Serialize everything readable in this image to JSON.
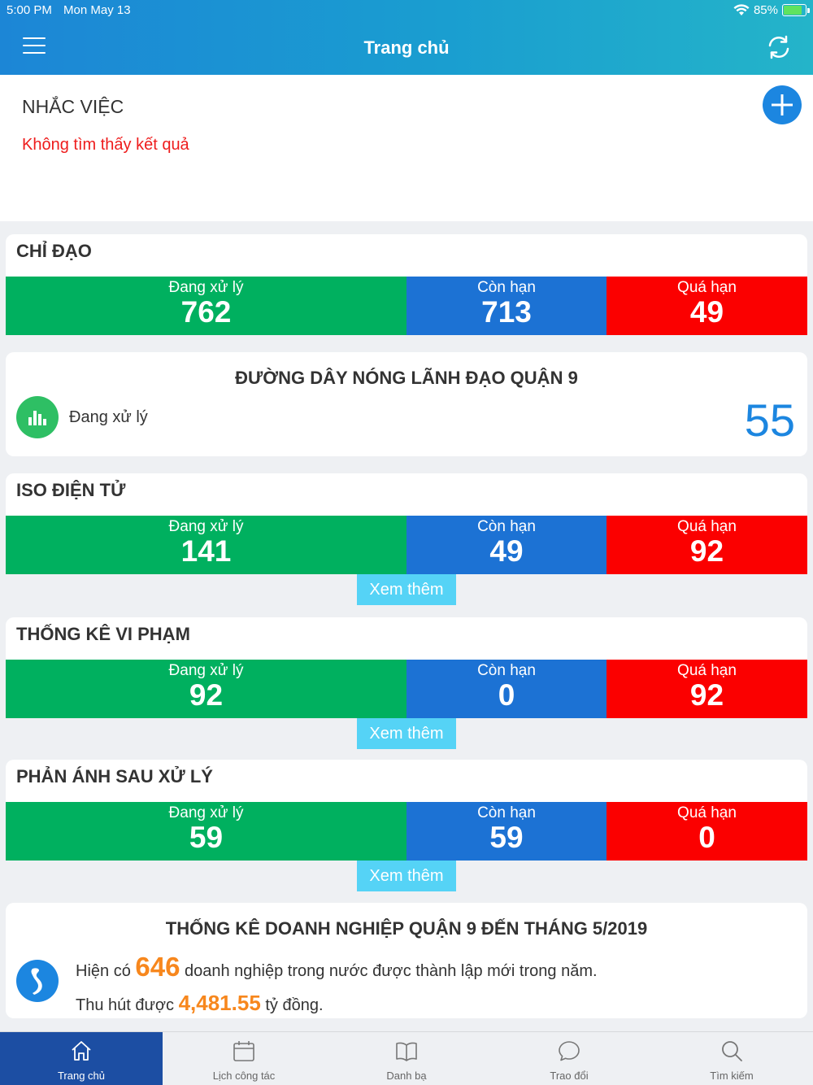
{
  "status_bar": {
    "time": "5:00 PM",
    "date": "Mon May 13",
    "battery": "85%"
  },
  "header": {
    "title": "Trang chủ"
  },
  "reminder": {
    "title": "NHẮC VIỆC",
    "empty_text": "Không tìm thấy kết quả"
  },
  "labels": {
    "processing": "Đang xử lý",
    "in_time": "Còn hạn",
    "overdue": "Quá hạn",
    "see_more": "Xem thêm"
  },
  "chi_dao": {
    "title": "CHỈ ĐẠO",
    "processing": "762",
    "in_time": "713",
    "overdue": "49"
  },
  "hotline": {
    "title": "ĐƯỜNG DÂY NÓNG LÃNH ĐẠO QUẬN 9",
    "label": "Đang xử lý",
    "count": "55"
  },
  "iso": {
    "title": "ISO ĐIỆN TỬ",
    "processing": "141",
    "in_time": "49",
    "overdue": "92"
  },
  "vi_pham": {
    "title": "THỐNG KÊ VI PHẠM",
    "processing": "92",
    "in_time": "0",
    "overdue": "92"
  },
  "phan_anh": {
    "title": "PHẢN ÁNH SAU XỬ LÝ",
    "processing": "59",
    "in_time": "59",
    "overdue": "0"
  },
  "business": {
    "title": "THỐNG KÊ DOANH NGHIỆP QUẬN 9 ĐẾN THÁNG 5/2019",
    "line1_prefix": "Hiện có",
    "count": "646",
    "line1_suffix": "doanh nghiệp trong nước được thành lập mới trong năm.",
    "line2_prefix": "Thu hút được",
    "amount": "4,481.55",
    "line2_suffix": "tỷ đồng."
  },
  "tabs": [
    {
      "label": "Trang chủ",
      "icon": "home-icon"
    },
    {
      "label": "Lịch công tác",
      "icon": "calendar-icon"
    },
    {
      "label": "Danh bạ",
      "icon": "book-icon"
    },
    {
      "label": "Trao đổi",
      "icon": "chat-icon"
    },
    {
      "label": "Tìm kiếm",
      "icon": "search-icon"
    }
  ]
}
